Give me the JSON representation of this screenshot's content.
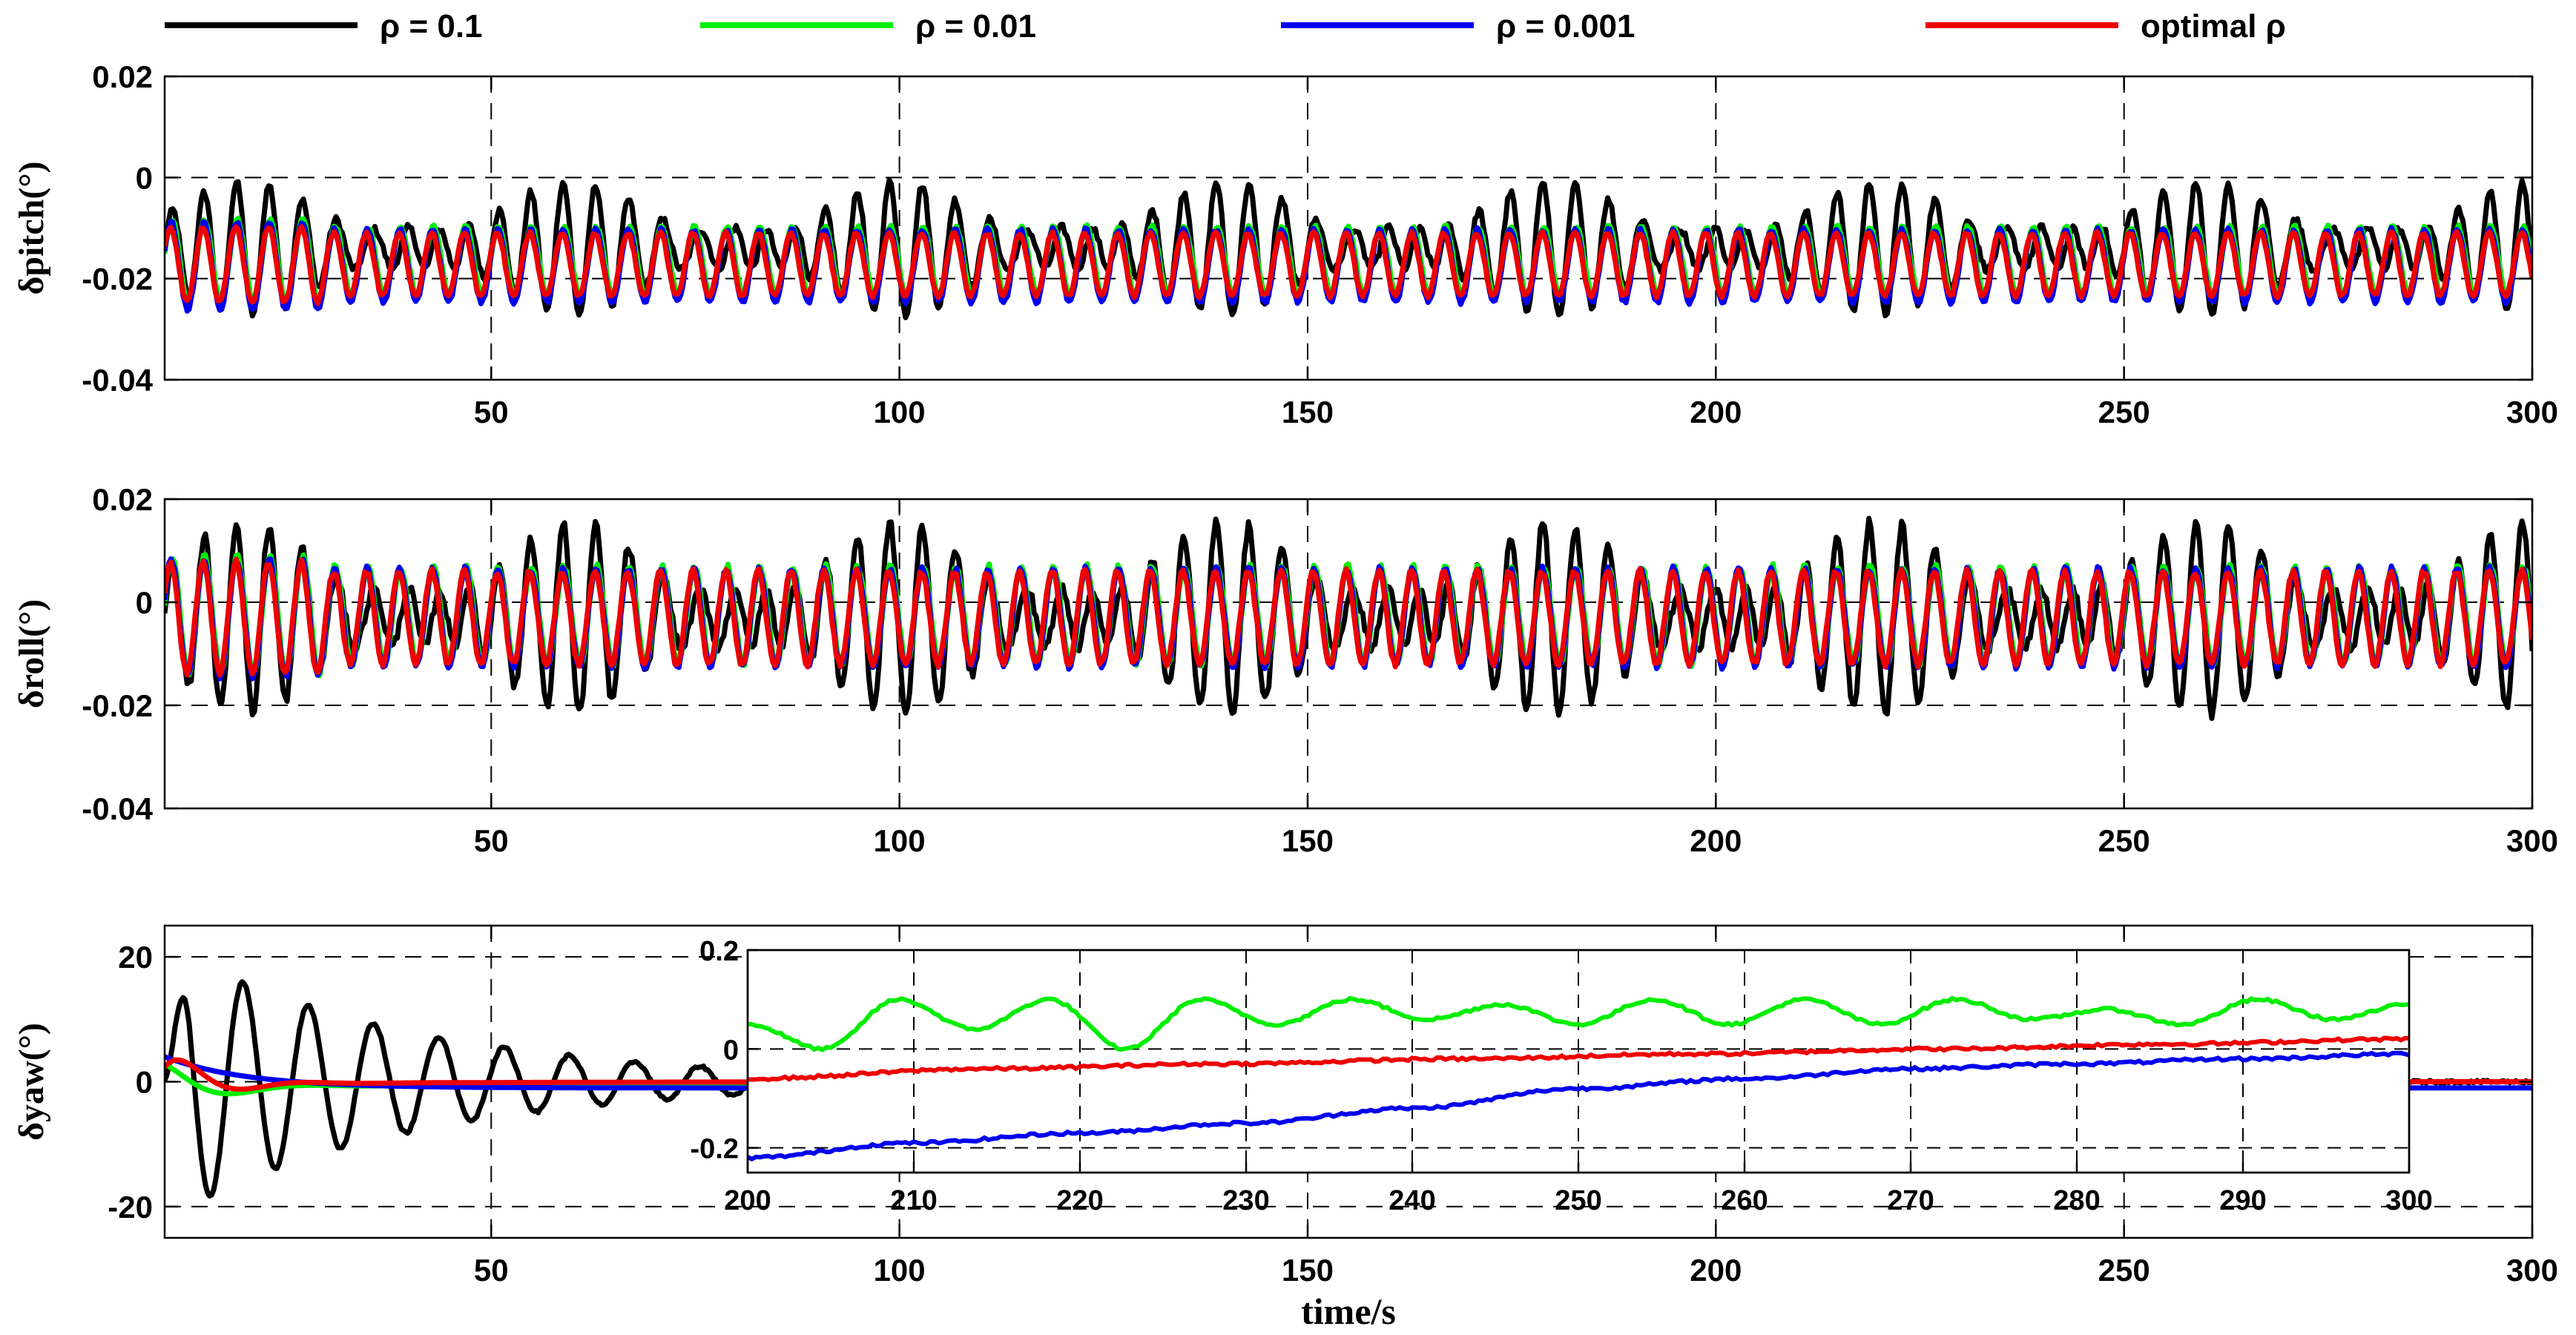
{
  "chart_data": [
    {
      "id": "pitch",
      "type": "line",
      "ylabel": "δpitch(°)",
      "xlabel": "",
      "xlim": [
        10,
        300
      ],
      "ylim": [
        -0.04,
        0.02
      ],
      "xticks": [
        50,
        100,
        150,
        200,
        250,
        300
      ],
      "yticks": [
        -0.04,
        -0.02,
        0,
        0.02
      ],
      "ytick_labels": [
        "-0.04",
        "-0.02",
        "0",
        "0.02"
      ],
      "grid": "dashed",
      "series": [
        {
          "name": "ρ = 0.1",
          "color": "#000000",
          "center": -0.014,
          "amp": 0.012,
          "period": 8
        },
        {
          "name": "ρ = 0.01",
          "color": "#00ee00",
          "center": -0.0165,
          "amp": 0.0068,
          "period": 4
        },
        {
          "name": "ρ = 0.001",
          "color": "#0000ee",
          "center": -0.0175,
          "amp": 0.0072,
          "period": 4
        },
        {
          "name": "optimal ρ",
          "color": "#ee0000",
          "center": -0.0172,
          "amp": 0.0062,
          "period": 4
        }
      ]
    },
    {
      "id": "roll",
      "type": "line",
      "ylabel": "δroll(°)",
      "xlabel": "",
      "xlim": [
        10,
        300
      ],
      "ylim": [
        -0.04,
        0.02
      ],
      "xticks": [
        50,
        100,
        150,
        200,
        250,
        300
      ],
      "yticks": [
        -0.04,
        -0.02,
        0,
        0.02
      ],
      "ytick_labels": [
        "-0.04",
        "-0.02",
        "0",
        "0.02"
      ],
      "grid": "dashed",
      "series": [
        {
          "name": "ρ = 0.1",
          "color": "#000000",
          "center": -0.003,
          "amp": 0.017,
          "period": 8
        },
        {
          "name": "ρ = 0.01",
          "color": "#00ee00",
          "center": -0.0025,
          "amp": 0.0095,
          "period": 4
        },
        {
          "name": "ρ = 0.001",
          "color": "#0000ee",
          "center": -0.003,
          "amp": 0.0095,
          "period": 4
        },
        {
          "name": "optimal ρ",
          "color": "#ee0000",
          "center": -0.003,
          "amp": 0.009,
          "period": 4
        }
      ]
    },
    {
      "id": "yaw",
      "type": "line",
      "ylabel": "δyaw(°)",
      "xlabel": "time/s",
      "xlim": [
        10,
        300
      ],
      "ylim": [
        -25,
        25
      ],
      "xticks": [
        50,
        100,
        150,
        200,
        250,
        300
      ],
      "yticks": [
        -20,
        0,
        20
      ],
      "ytick_labels": [
        "-20",
        "0",
        "20"
      ],
      "grid": "dashed",
      "series": [
        {
          "name": "ρ = 0.1",
          "color": "#000000"
        },
        {
          "name": "ρ = 0.01",
          "color": "#00ee00"
        },
        {
          "name": "ρ = 0.001",
          "color": "#0000ee"
        },
        {
          "name": "optimal ρ",
          "color": "#ee0000"
        }
      ],
      "inset": {
        "xlim": [
          200,
          300
        ],
        "ylim": [
          -0.25,
          0.2
        ],
        "xticks": [
          200,
          210,
          220,
          230,
          240,
          250,
          260,
          270,
          280,
          290,
          300
        ],
        "yticks": [
          -0.2,
          0,
          0.2
        ],
        "ytick_labels": [
          "-0.2",
          "0",
          "0.2"
        ],
        "series": [
          {
            "name": "ρ = 0.01",
            "color": "#00ee00",
            "values": [
              0.05,
              0.0,
              0.1,
              0.04,
              0.1,
              0.0,
              0.1,
              0.05,
              0.1,
              0.06,
              0.09,
              0.05,
              0.1,
              0.05,
              0.1,
              0.05,
              0.1,
              0.06,
              0.08,
              0.05,
              0.1,
              0.06,
              0.09
            ]
          },
          {
            "name": "optimal ρ",
            "color": "#ee0000",
            "values": [
              -0.06,
              -0.04,
              -0.03,
              -0.02,
              -0.01,
              0.0,
              0.01,
              0.02
            ]
          },
          {
            "name": "ρ = 0.001",
            "color": "#0000ee",
            "values": [
              -0.22,
              -0.19,
              -0.17,
              -0.15,
              -0.12,
              -0.08,
              -0.06,
              -0.04,
              -0.03,
              -0.02,
              -0.01
            ]
          }
        ]
      }
    }
  ],
  "legend": {
    "placement": "top",
    "entries": [
      {
        "label": "ρ = 0.1",
        "color": "#000000"
      },
      {
        "label": "ρ = 0.01",
        "color": "#00ee00"
      },
      {
        "label": "ρ = 0.001",
        "color": "#0000ee"
      },
      {
        "label": "optimal ρ",
        "color": "#ee0000"
      }
    ]
  }
}
